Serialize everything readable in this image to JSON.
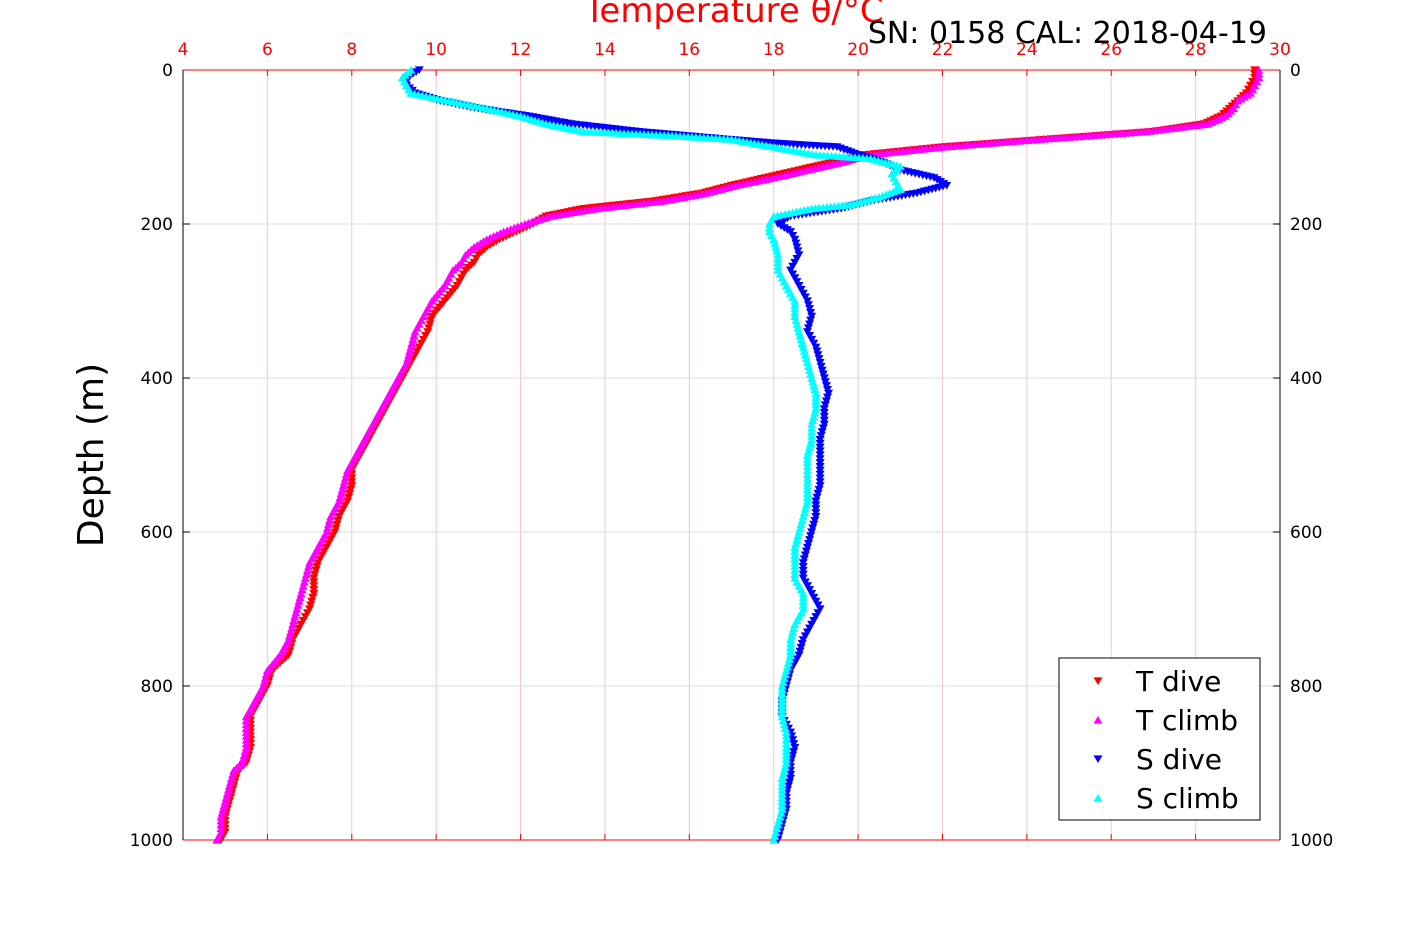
{
  "chart_data": {
    "type": "scatter",
    "title": "Temperature θ/°C",
    "subtitle": "SN: 0158  CAL: 2018-04-19",
    "xlabel": "",
    "ylabel": "Depth (m)",
    "xlim": [
      4,
      30
    ],
    "ylim": [
      0,
      1000
    ],
    "y_inverted": true,
    "x_ticks": [
      "4",
      "6",
      "8",
      "10",
      "12",
      "14",
      "16",
      "18",
      "20",
      "22",
      "24",
      "26",
      "28",
      "30"
    ],
    "y_ticks_left": [
      "0",
      "200",
      "400",
      "600",
      "800",
      "1000"
    ],
    "y_ticks_right": [
      "0",
      "200",
      "400",
      "600",
      "800",
      "1000"
    ],
    "grid": true,
    "legend_position": "bottom-right",
    "series": [
      {
        "name": "T dive",
        "color": "#ff0000",
        "marker": "triangle-down",
        "points": [
          [
            29.4,
            0
          ],
          [
            29.4,
            10
          ],
          [
            29.3,
            20
          ],
          [
            29.2,
            30
          ],
          [
            29.0,
            40
          ],
          [
            28.8,
            50
          ],
          [
            28.6,
            60
          ],
          [
            28.2,
            70
          ],
          [
            27.0,
            80
          ],
          [
            24.5,
            90
          ],
          [
            22.0,
            100
          ],
          [
            20.2,
            110
          ],
          [
            19.4,
            120
          ],
          [
            18.6,
            130
          ],
          [
            17.8,
            140
          ],
          [
            17.0,
            150
          ],
          [
            16.3,
            160
          ],
          [
            15.2,
            170
          ],
          [
            13.5,
            180
          ],
          [
            12.6,
            190
          ],
          [
            12.3,
            200
          ],
          [
            11.9,
            210
          ],
          [
            11.5,
            220
          ],
          [
            11.2,
            230
          ],
          [
            11.0,
            240
          ],
          [
            10.9,
            250
          ],
          [
            10.7,
            260
          ],
          [
            10.5,
            280
          ],
          [
            10.2,
            300
          ],
          [
            9.9,
            320
          ],
          [
            9.8,
            340
          ],
          [
            9.6,
            360
          ],
          [
            9.4,
            380
          ],
          [
            9.2,
            400
          ],
          [
            9.0,
            420
          ],
          [
            8.8,
            440
          ],
          [
            8.6,
            460
          ],
          [
            8.4,
            480
          ],
          [
            8.2,
            500
          ],
          [
            8.0,
            520
          ],
          [
            8.0,
            540
          ],
          [
            7.9,
            560
          ],
          [
            7.7,
            580
          ],
          [
            7.6,
            600
          ],
          [
            7.4,
            620
          ],
          [
            7.2,
            640
          ],
          [
            7.1,
            660
          ],
          [
            7.1,
            680
          ],
          [
            7.0,
            700
          ],
          [
            6.8,
            720
          ],
          [
            6.6,
            740
          ],
          [
            6.5,
            760
          ],
          [
            6.1,
            780
          ],
          [
            6.0,
            800
          ],
          [
            5.8,
            820
          ],
          [
            5.6,
            840
          ],
          [
            5.6,
            860
          ],
          [
            5.6,
            880
          ],
          [
            5.5,
            900
          ],
          [
            5.3,
            910
          ],
          [
            5.2,
            930
          ],
          [
            5.1,
            950
          ],
          [
            5.0,
            970
          ],
          [
            5.0,
            990
          ],
          [
            4.9,
            1000
          ]
        ]
      },
      {
        "name": "T climb",
        "color": "#ff00ff",
        "marker": "triangle-up",
        "points": [
          [
            29.5,
            0
          ],
          [
            29.5,
            10
          ],
          [
            29.4,
            20
          ],
          [
            29.3,
            30
          ],
          [
            29.0,
            40
          ],
          [
            28.9,
            50
          ],
          [
            28.7,
            60
          ],
          [
            28.3,
            70
          ],
          [
            26.8,
            80
          ],
          [
            24.3,
            90
          ],
          [
            22.0,
            100
          ],
          [
            20.3,
            110
          ],
          [
            19.6,
            120
          ],
          [
            18.8,
            130
          ],
          [
            18.0,
            140
          ],
          [
            17.1,
            150
          ],
          [
            16.4,
            160
          ],
          [
            15.4,
            170
          ],
          [
            13.8,
            180
          ],
          [
            12.7,
            190
          ],
          [
            12.1,
            200
          ],
          [
            11.6,
            210
          ],
          [
            11.2,
            220
          ],
          [
            10.9,
            230
          ],
          [
            10.7,
            240
          ],
          [
            10.6,
            250
          ],
          [
            10.4,
            260
          ],
          [
            10.2,
            280
          ],
          [
            9.9,
            300
          ],
          [
            9.7,
            320
          ],
          [
            9.5,
            340
          ],
          [
            9.4,
            360
          ],
          [
            9.3,
            380
          ],
          [
            9.1,
            400
          ],
          [
            8.9,
            420
          ],
          [
            8.7,
            440
          ],
          [
            8.5,
            460
          ],
          [
            8.3,
            480
          ],
          [
            8.1,
            500
          ],
          [
            7.9,
            520
          ],
          [
            7.8,
            540
          ],
          [
            7.7,
            560
          ],
          [
            7.5,
            580
          ],
          [
            7.4,
            600
          ],
          [
            7.2,
            620
          ],
          [
            7.0,
            640
          ],
          [
            6.9,
            660
          ],
          [
            6.8,
            680
          ],
          [
            6.7,
            700
          ],
          [
            6.6,
            720
          ],
          [
            6.5,
            740
          ],
          [
            6.3,
            760
          ],
          [
            6.0,
            780
          ],
          [
            5.9,
            800
          ],
          [
            5.7,
            820
          ],
          [
            5.5,
            840
          ],
          [
            5.5,
            860
          ],
          [
            5.5,
            880
          ],
          [
            5.4,
            900
          ],
          [
            5.2,
            910
          ],
          [
            5.1,
            930
          ],
          [
            5.0,
            950
          ],
          [
            4.9,
            970
          ],
          [
            4.9,
            990
          ],
          [
            4.8,
            1000
          ]
        ]
      },
      {
        "name": "S dive",
        "color": "#0000ff",
        "marker": "triangle-down",
        "points": [
          [
            9.6,
            0
          ],
          [
            9.3,
            10
          ],
          [
            9.3,
            20
          ],
          [
            9.5,
            30
          ],
          [
            10.1,
            40
          ],
          [
            11.0,
            50
          ],
          [
            12.2,
            60
          ],
          [
            13.2,
            70
          ],
          [
            14.8,
            80
          ],
          [
            16.9,
            90
          ],
          [
            18.0,
            95
          ],
          [
            19.5,
            100
          ],
          [
            20.0,
            110
          ],
          [
            20.6,
            120
          ],
          [
            21.0,
            130
          ],
          [
            21.8,
            140
          ],
          [
            22.1,
            150
          ],
          [
            21.4,
            160
          ],
          [
            20.3,
            170
          ],
          [
            19.6,
            180
          ],
          [
            18.4,
            190
          ],
          [
            18.1,
            200
          ],
          [
            18.4,
            210
          ],
          [
            18.5,
            220
          ],
          [
            18.6,
            240
          ],
          [
            18.4,
            260
          ],
          [
            18.6,
            280
          ],
          [
            18.8,
            300
          ],
          [
            18.9,
            320
          ],
          [
            18.8,
            340
          ],
          [
            19.0,
            360
          ],
          [
            19.1,
            380
          ],
          [
            19.2,
            400
          ],
          [
            19.3,
            420
          ],
          [
            19.2,
            440
          ],
          [
            19.2,
            460
          ],
          [
            19.1,
            480
          ],
          [
            19.1,
            500
          ],
          [
            19.1,
            520
          ],
          [
            19.1,
            540
          ],
          [
            19.0,
            560
          ],
          [
            19.0,
            580
          ],
          [
            18.9,
            600
          ],
          [
            18.8,
            620
          ],
          [
            18.7,
            640
          ],
          [
            18.7,
            660
          ],
          [
            18.9,
            680
          ],
          [
            19.1,
            700
          ],
          [
            18.9,
            720
          ],
          [
            18.7,
            740
          ],
          [
            18.6,
            760
          ],
          [
            18.4,
            780
          ],
          [
            18.3,
            800
          ],
          [
            18.2,
            820
          ],
          [
            18.2,
            840
          ],
          [
            18.4,
            860
          ],
          [
            18.5,
            880
          ],
          [
            18.4,
            900
          ],
          [
            18.4,
            920
          ],
          [
            18.3,
            940
          ],
          [
            18.3,
            960
          ],
          [
            18.2,
            980
          ],
          [
            18.1,
            1000
          ]
        ]
      },
      {
        "name": "S climb",
        "color": "#00ffff",
        "marker": "triangle-up",
        "points": [
          [
            9.4,
            0
          ],
          [
            9.2,
            10
          ],
          [
            9.3,
            20
          ],
          [
            9.4,
            30
          ],
          [
            10.3,
            40
          ],
          [
            11.2,
            50
          ],
          [
            12.0,
            60
          ],
          [
            12.6,
            70
          ],
          [
            13.5,
            80
          ],
          [
            15.5,
            85
          ],
          [
            17.0,
            90
          ],
          [
            18.0,
            100
          ],
          [
            19.0,
            110
          ],
          [
            20.3,
            115
          ],
          [
            21.0,
            125
          ],
          [
            20.8,
            135
          ],
          [
            20.9,
            145
          ],
          [
            21.0,
            155
          ],
          [
            20.5,
            165
          ],
          [
            19.8,
            175
          ],
          [
            18.9,
            180
          ],
          [
            18.0,
            190
          ],
          [
            17.9,
            200
          ],
          [
            17.9,
            210
          ],
          [
            18.0,
            220
          ],
          [
            18.1,
            240
          ],
          [
            18.1,
            260
          ],
          [
            18.3,
            280
          ],
          [
            18.5,
            300
          ],
          [
            18.5,
            320
          ],
          [
            18.6,
            340
          ],
          [
            18.7,
            360
          ],
          [
            18.8,
            380
          ],
          [
            18.9,
            400
          ],
          [
            19.0,
            420
          ],
          [
            19.0,
            440
          ],
          [
            18.9,
            460
          ],
          [
            18.9,
            480
          ],
          [
            18.8,
            500
          ],
          [
            18.8,
            520
          ],
          [
            18.8,
            540
          ],
          [
            18.8,
            560
          ],
          [
            18.7,
            580
          ],
          [
            18.6,
            600
          ],
          [
            18.5,
            620
          ],
          [
            18.5,
            640
          ],
          [
            18.5,
            660
          ],
          [
            18.7,
            680
          ],
          [
            18.7,
            700
          ],
          [
            18.5,
            720
          ],
          [
            18.4,
            740
          ],
          [
            18.4,
            760
          ],
          [
            18.3,
            780
          ],
          [
            18.2,
            800
          ],
          [
            18.2,
            820
          ],
          [
            18.2,
            840
          ],
          [
            18.3,
            860
          ],
          [
            18.3,
            880
          ],
          [
            18.3,
            900
          ],
          [
            18.2,
            920
          ],
          [
            18.2,
            940
          ],
          [
            18.2,
            960
          ],
          [
            18.1,
            980
          ],
          [
            18.0,
            1000
          ]
        ]
      }
    ]
  }
}
